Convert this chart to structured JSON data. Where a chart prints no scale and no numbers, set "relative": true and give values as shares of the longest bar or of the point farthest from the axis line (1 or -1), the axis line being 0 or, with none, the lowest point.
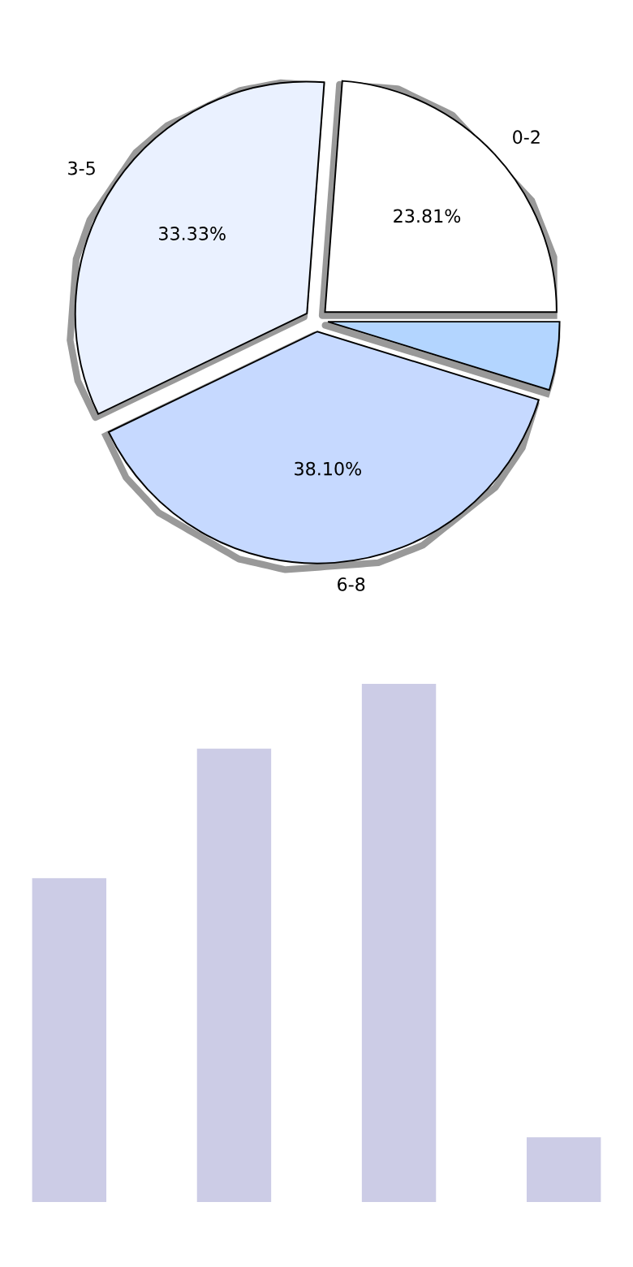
{
  "chart_data": [
    {
      "type": "pie",
      "categories": [
        "0-2",
        "3-5",
        "6-8",
        null
      ],
      "values": [
        23.81,
        33.33,
        38.1,
        4.76
      ],
      "value_labels": [
        "23.81%",
        "33.33%",
        "38.10%",
        null
      ],
      "colors": [
        "#ffffff",
        "#eaf1ff",
        "#c6d9ff",
        "#b3d5ff"
      ]
    },
    {
      "type": "bar",
      "categories": [
        null,
        null,
        null,
        null
      ],
      "values": [
        0.625,
        0.875,
        1,
        0.125
      ],
      "color": "#cccce6",
      "relative": true
    }
  ]
}
